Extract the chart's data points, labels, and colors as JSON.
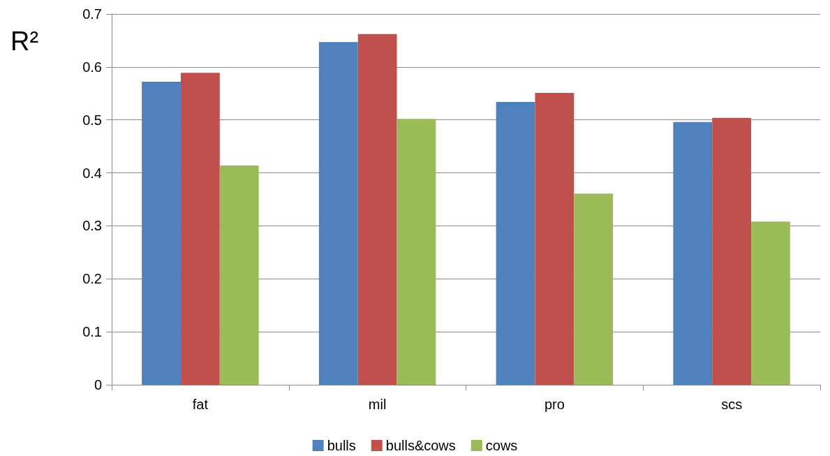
{
  "chart_data": {
    "type": "bar",
    "ylabel": "R²",
    "categories": [
      "fat",
      "mil",
      "pro",
      "scs"
    ],
    "series": [
      {
        "name": "bulls",
        "color": "#4f81bd",
        "values": [
          0.572,
          0.647,
          0.534,
          0.496
        ]
      },
      {
        "name": "bulls&cows",
        "color": "#c0504d",
        "values": [
          0.589,
          0.662,
          0.551,
          0.504
        ]
      },
      {
        "name": "cows",
        "color": "#9bbb59",
        "values": [
          0.414,
          0.502,
          0.361,
          0.308
        ]
      }
    ],
    "ylim": [
      0,
      0.7
    ],
    "yticks": [
      0,
      0.1,
      0.2,
      0.3,
      0.4,
      0.5,
      0.6,
      0.7
    ],
    "grid": "y",
    "legend": "bottom"
  }
}
